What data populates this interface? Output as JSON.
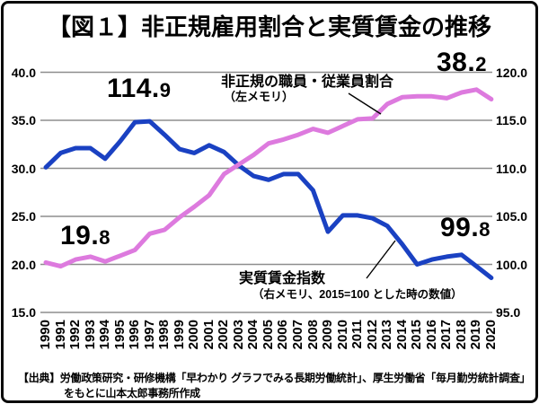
{
  "title": "【図１】非正規雇用割合と実質賃金の推移",
  "colors": {
    "ratio_line": "#dd7ade",
    "wage_line": "#1a41c2",
    "gridline": "#8e8e8e",
    "text": "#000000",
    "background": "#ffffff",
    "border": "#0a0a0a"
  },
  "chart_data": {
    "type": "line",
    "x": [
      1990,
      1991,
      1992,
      1993,
      1994,
      1995,
      1996,
      1997,
      1998,
      1999,
      2000,
      2001,
      2002,
      2003,
      2004,
      2005,
      2006,
      2007,
      2008,
      2009,
      2010,
      2011,
      2012,
      2013,
      2014,
      2015,
      2016,
      2017,
      2018,
      2019,
      2020
    ],
    "series": [
      {
        "name": "非正規の職員・従業員割合",
        "axis": "left",
        "color": "#dd7ade",
        "values": [
          20.2,
          19.8,
          20.5,
          20.8,
          20.3,
          20.9,
          21.5,
          23.2,
          23.6,
          24.9,
          26.0,
          27.2,
          29.4,
          30.4,
          31.4,
          32.6,
          33.0,
          33.5,
          34.1,
          33.7,
          34.4,
          35.1,
          35.2,
          36.7,
          37.4,
          37.5,
          37.5,
          37.3,
          37.9,
          38.2,
          37.2
        ]
      },
      {
        "name": "実質賃金指数",
        "axis": "right",
        "color": "#1a41c2",
        "values": [
          110.1,
          111.6,
          112.1,
          112.1,
          111.0,
          112.8,
          114.8,
          114.9,
          113.5,
          112.0,
          111.6,
          112.4,
          111.7,
          110.3,
          109.2,
          108.8,
          109.4,
          109.4,
          107.7,
          103.4,
          105.1,
          105.1,
          104.8,
          104.0,
          102.1,
          100.0,
          100.5,
          100.8,
          101.0,
          99.8,
          98.6
        ]
      }
    ],
    "left_axis": {
      "min": 15,
      "max": 40,
      "tick_labels": [
        "40.0",
        "35.0",
        "30.0",
        "25.0",
        "20.0",
        "15.0"
      ],
      "tick_values": [
        40,
        35,
        30,
        25,
        20,
        15
      ]
    },
    "right_axis": {
      "min": 95,
      "max": 120,
      "tick_labels": [
        "120.0",
        "115.0",
        "110.0",
        "105.0",
        "100.0",
        "95.0"
      ],
      "tick_values": [
        120,
        115,
        110,
        105,
        100,
        95
      ]
    },
    "grid": true,
    "legend_position": "inline-callouts"
  },
  "annotations": {
    "wage_peak": {
      "big": "114.",
      "small": "9"
    },
    "ratio_start": {
      "big": "19.",
      "small": "8"
    },
    "ratio_peak": {
      "big": "38.",
      "small": "2"
    },
    "wage_recent": {
      "big": "99.",
      "small": "8"
    }
  },
  "callouts": {
    "ratio": {
      "line1": "非正規の職員・従業員割合",
      "line2": "（左メモリ）"
    },
    "wage": {
      "line1": "実質賃金指数",
      "line2": "（右メモリ、2015=100 とした時の数値）"
    }
  },
  "source": {
    "line1": "【出典】労働政策研究・研修機構「早わかり グラフでみる長期労働統計」、厚生労働省「毎月勤労統計調査」",
    "line2": "をもとに山本太郎事務所作成"
  }
}
